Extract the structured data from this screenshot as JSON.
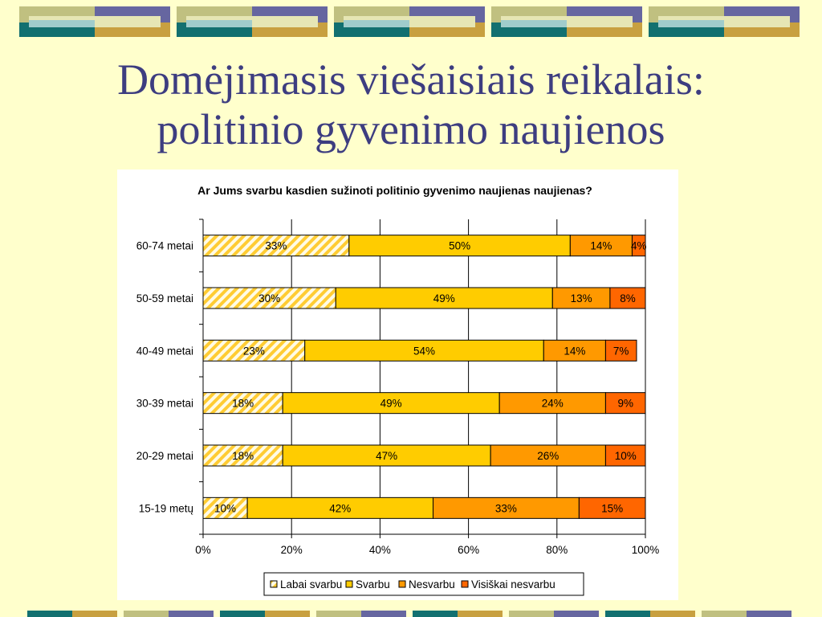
{
  "slide": {
    "title_line1": "Domėjimasis viešaisiais reikalais:",
    "title_line2": "politinio gyvenimo naujienos"
  },
  "colors": {
    "background": "#ffffcc",
    "title": "#3d3d80",
    "labai_svarbu": "#ffcc33",
    "svarbu": "#ffcc00",
    "nesvarbu": "#ff9900",
    "visiskai_nesvarbu": "#ff6600",
    "deco_navy": "#6666a0",
    "deco_olive": "#c0c080",
    "deco_teal": "#127070",
    "deco_gold": "#c8a040",
    "deco_cream": "#e6e6b4",
    "deco_mint": "#a0cccc"
  },
  "chart_data": {
    "type": "bar",
    "orientation": "horizontal",
    "stacked": "percent",
    "title": "Ar Jums svarbu kasdien sužinoti politinio gyvenimo naujienas naujienas?",
    "categories": [
      "60-74 metai",
      "50-59 metai",
      "40-49 metai",
      "30-39 metai",
      "20-29 metai",
      "15-19 metų"
    ],
    "series": [
      {
        "name": "Labai svarbu",
        "values": [
          33,
          30,
          23,
          18,
          18,
          10
        ],
        "labels": [
          "33%",
          "30%",
          "23%",
          "18%",
          "18%",
          "10%"
        ],
        "pattern": "hatched"
      },
      {
        "name": "Svarbu",
        "values": [
          50,
          49,
          54,
          49,
          47,
          42
        ],
        "labels": [
          "50%",
          "49%",
          "54%",
          "49%",
          "47%",
          "42%"
        ]
      },
      {
        "name": "Nesvarbu",
        "values": [
          14,
          13,
          14,
          24,
          26,
          33
        ],
        "labels": [
          "14%",
          "13%",
          "14%",
          "24%",
          "26%",
          "33%"
        ]
      },
      {
        "name": "Visiškai nesvarbu",
        "values": [
          4,
          8,
          7,
          9,
          10,
          15
        ],
        "labels": [
          "4%",
          "8%",
          "7%",
          "9%",
          "10%",
          "15%"
        ]
      }
    ],
    "xlim": [
      0,
      100
    ],
    "xticks": [
      "0%",
      "20%",
      "40%",
      "60%",
      "80%",
      "100%"
    ],
    "grid": "vertical",
    "legend": "bottom"
  }
}
